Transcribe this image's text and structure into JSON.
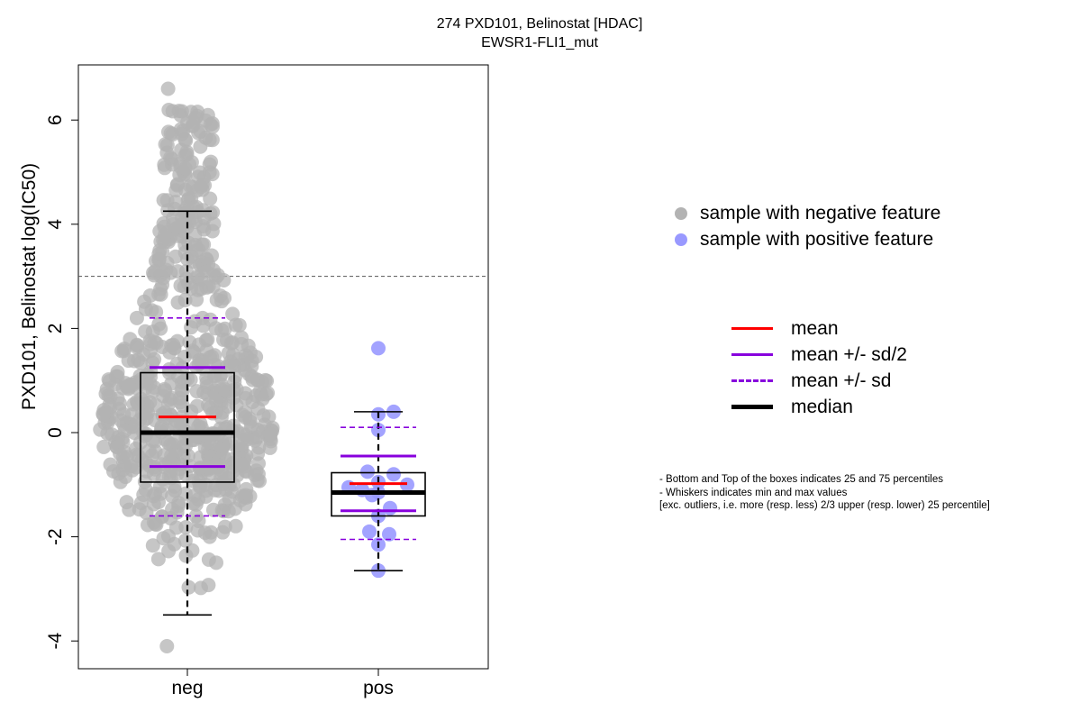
{
  "title": {
    "line1": "274 PXD101, Belinostat [HDAC]",
    "line2": "EWSR1-FLI1_mut"
  },
  "legend": {
    "negative_label": "sample with negative feature",
    "positive_label": "sample with positive feature",
    "negative_color": "#b3b3b3",
    "positive_color": "#9999ff"
  },
  "stats_legend": {
    "mean": "mean",
    "mean_sd2": "mean +/- sd/2",
    "mean_sd": "mean +/- sd",
    "median": "median",
    "mean_color": "#ff0000",
    "sd_color": "#8800dd",
    "median_color": "#000000"
  },
  "notes": [
    "- Bottom and Top of the boxes indicates 25 and 75 percentiles",
    "- Whiskers indicates min and max values",
    "[exc. outliers, i.e. more (resp. less) 2/3 upper (resp. lower) 25 percentile]"
  ],
  "chart_data": {
    "type": "box-scatter",
    "title": "274 PXD101, Belinostat [HDAC]",
    "subtitle": "EWSR1-FLI1_mut",
    "ylabel": "PXD101, Belinostat log(IC50)",
    "xlabel": "",
    "categories": [
      "neg",
      "pos"
    ],
    "ylim": [
      -4.5,
      7.0
    ],
    "yticks": [
      -4,
      -2,
      0,
      2,
      4,
      6
    ],
    "threshold_line": 3.0,
    "grid": false,
    "legend_position": "right",
    "groups": [
      {
        "name": "neg",
        "color": "#b3b3b3",
        "min": -3.5,
        "q1": -0.95,
        "median": 0.0,
        "q3": 1.15,
        "max": 4.25,
        "mean": 0.3,
        "mean_minus_sd2": -0.65,
        "mean_plus_sd2": 1.25,
        "mean_minus_sd": -1.6,
        "mean_plus_sd": 2.2,
        "n_points": 720
      },
      {
        "name": "pos",
        "color": "#9999ff",
        "min": -2.65,
        "q1": -1.6,
        "median": -1.15,
        "q3": -0.77,
        "max": 0.4,
        "mean": -0.98,
        "mean_minus_sd2": -1.5,
        "mean_plus_sd2": -0.45,
        "mean_minus_sd": -2.05,
        "mean_plus_sd": 0.1,
        "points": [
          1.62,
          0.4,
          0.35,
          0.05,
          -0.75,
          -0.8,
          -0.95,
          -1.0,
          -1.05,
          -1.1,
          -1.15,
          -1.2,
          -1.45,
          -1.6,
          -1.9,
          -1.95,
          -2.15,
          -2.65
        ]
      }
    ]
  }
}
